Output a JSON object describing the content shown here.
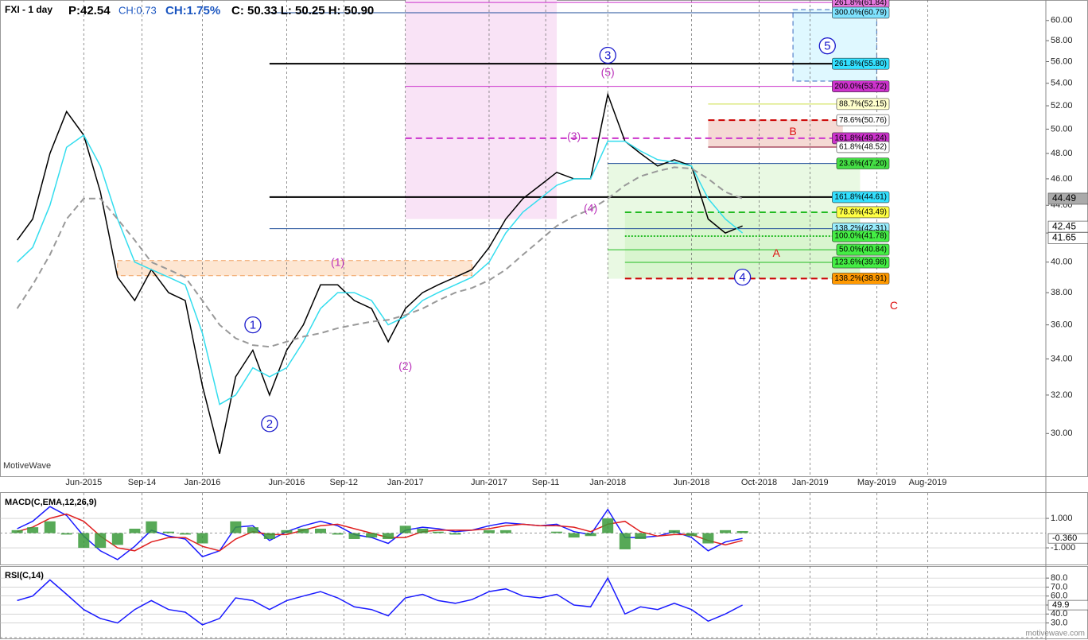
{
  "header": {
    "symbol": "FXI - 1 day",
    "price": "P:42.54",
    "change": "CH:0.73",
    "change_pct": "CH:1.75%",
    "ohlc": "C: 50.33 L: 50.25 H: 50.90"
  },
  "watermark": "MotiveWave",
  "footer": "motivewave.com",
  "chart_data": [
    {
      "type": "line",
      "log": true,
      "x": [
        "2015-02",
        "2015-03",
        "2015-04",
        "2015-05",
        "2015-06",
        "2015-07",
        "2015-08",
        "2015-09",
        "2015-10",
        "2015-11",
        "2015-12",
        "2016-01",
        "2016-02",
        "2016-03",
        "2016-04",
        "2016-05",
        "2016-06",
        "2016-07",
        "2016-08",
        "2016-09",
        "2016-10",
        "2016-11",
        "2016-12",
        "2017-01",
        "2017-02",
        "2017-03",
        "2017-04",
        "2017-05",
        "2017-06",
        "2017-07",
        "2017-08",
        "2017-09",
        "2017-10",
        "2017-11",
        "2017-12",
        "2018-01",
        "2018-02",
        "2018-03",
        "2018-04",
        "2018-05",
        "2018-06",
        "2018-07",
        "2018-08",
        "2018-09"
      ],
      "series": [
        {
          "color": "#000000",
          "values": [
            41.5,
            43,
            48,
            51.5,
            49.5,
            45,
            39,
            37.5,
            39.5,
            38,
            37.5,
            32.5,
            29,
            33,
            34.5,
            32,
            34.5,
            36,
            38.5,
            38.5,
            37.5,
            37,
            35,
            37,
            38,
            38.5,
            39,
            39.5,
            41,
            43,
            44.5,
            45.5,
            46.5,
            46,
            46,
            53,
            49,
            48,
            47,
            47.5,
            47,
            43,
            42,
            42.5
          ]
        },
        {
          "color": "#33ddee",
          "values": [
            40,
            41,
            44,
            48.5,
            49.5,
            47,
            43,
            40,
            39.5,
            39,
            38.5,
            35.5,
            31.5,
            32,
            33.5,
            33,
            33.5,
            35,
            37,
            38,
            38,
            37.5,
            36,
            36.5,
            37.5,
            38,
            38.5,
            39,
            40,
            42,
            43.5,
            44.5,
            45.5,
            46,
            46,
            49,
            49,
            48.2,
            47.5,
            47.3,
            47,
            44.5,
            43,
            42
          ]
        },
        {
          "color": "#999999",
          "dash": "dashed",
          "values": [
            37,
            38.5,
            40.5,
            43,
            44.5,
            44.5,
            43,
            41.5,
            40,
            39.5,
            39,
            37.5,
            36,
            35.2,
            34.8,
            34.7,
            35,
            35.3,
            35.5,
            35.8,
            36,
            36.2,
            36.3,
            36.6,
            37,
            37.5,
            38,
            38.3,
            38.8,
            39.5,
            40.5,
            41.5,
            42.5,
            43.2,
            43.7,
            44.5,
            45.5,
            46.2,
            46.6,
            46.9,
            46.8,
            46,
            45,
            44.5
          ]
        }
      ],
      "xlim": [
        "2015-01",
        "2020-03"
      ],
      "ylim": [
        28,
        62.1
      ],
      "xticks": [
        {
          "value": "2015-06",
          "label": "Jun-2015"
        },
        {
          "value": "2015-09-14",
          "label": "Sep-14"
        },
        {
          "value": "2016-01",
          "label": "Jan-2016"
        },
        {
          "value": "2016-06",
          "label": "Jun-2016"
        },
        {
          "value": "2016-09-12",
          "label": "Sep-12"
        },
        {
          "value": "2017-01",
          "label": "Jan-2017"
        },
        {
          "value": "2017-06",
          "label": "Jun-2017"
        },
        {
          "value": "2017-09-11",
          "label": "Sep-11"
        },
        {
          "value": "2018-01",
          "label": "Jan-2018"
        },
        {
          "value": "2018-06",
          "label": "Jun-2018"
        },
        {
          "value": "2018-10",
          "label": "Oct-2018"
        },
        {
          "value": "2019-01",
          "label": "Jan-2019"
        },
        {
          "value": "2019-05",
          "label": "May-2019"
        },
        {
          "value": "2019-08",
          "label": "Aug-2019"
        }
      ],
      "yticks": [
        {
          "value": 30,
          "label": "30.00"
        },
        {
          "value": 32,
          "label": "32.00"
        },
        {
          "value": 34,
          "label": "34.00"
        },
        {
          "value": 36,
          "label": "36.00"
        },
        {
          "value": 38,
          "label": "38.00"
        },
        {
          "value": 40,
          "label": "40.00"
        },
        {
          "value": 42,
          "label": "42.00"
        },
        {
          "value": 44,
          "label": "44.00"
        },
        {
          "value": 46,
          "label": "46.00"
        },
        {
          "value": 48,
          "label": "48.00"
        },
        {
          "value": 50,
          "label": "50.00"
        },
        {
          "value": 52,
          "label": "52.00"
        },
        {
          "value": 54,
          "label": "54.00"
        },
        {
          "value": 56,
          "label": "56.00"
        },
        {
          "value": 58,
          "label": "58.00"
        },
        {
          "value": 60,
          "label": "60.00"
        }
      ],
      "grid": true,
      "zones": [
        {
          "x": [
            "2017-01",
            "2017-10"
          ],
          "y": [
            43,
            62.1
          ],
          "color": "#f9e3f6"
        },
        {
          "x": [
            "2015-08",
            "2017-05"
          ],
          "y": [
            39.1,
            40.1
          ],
          "color": "#fde6d2",
          "border": "#f0a060"
        },
        {
          "x": [
            "2018-01",
            "2019-04"
          ],
          "y": [
            38.9,
            47.2
          ],
          "color": "#e9f9e3"
        },
        {
          "x": [
            "2018-02",
            "2019-04"
          ],
          "y": [
            38.9,
            43.5
          ],
          "color": "#d9f5cf"
        },
        {
          "x": [
            "2018-07",
            "2019-03"
          ],
          "y": [
            48.5,
            50.8
          ],
          "color": "#f5d9d4"
        },
        {
          "x": [
            "2018-12",
            "2019-05"
          ],
          "y": [
            54.2,
            61.1
          ],
          "color": "#dff8ff",
          "border": "#3a6ac0"
        }
      ],
      "levels": [
        {
          "label": "261.8%(61.84)",
          "value": 61.84,
          "from": "2017-01",
          "line": "#cc33cc",
          "box": "#e477dc"
        },
        {
          "label": "300.0%(60.79)",
          "value": 60.79,
          "from": "2016-05",
          "line": "#1f4e99",
          "box": "#7fe3ff"
        },
        {
          "label": "261.8%(55.80)",
          "value": 55.8,
          "from": "2016-05",
          "line": "#000000",
          "box": "#33e0ff"
        },
        {
          "label": "200.0%(53.72)",
          "value": 53.72,
          "from": "2017-01",
          "line": "#cc33cc",
          "box": "#cc33cc"
        },
        {
          "label": "88.7%(52.15)",
          "value": 52.15,
          "from": "2018-07",
          "line": "#ccdd44",
          "box": "#ffffcc"
        },
        {
          "label": "78.6%(50.76)",
          "value": 50.76,
          "from": "2018-07",
          "line": "#cc0000",
          "box": "#ffffff",
          "dash": "dashed"
        },
        {
          "label": "161.8%(49.24)",
          "value": 49.24,
          "from": "2017-01",
          "line": "#cc33cc",
          "box": "#cc33cc",
          "dash": "dashed"
        },
        {
          "label": "61.8%(48.52)",
          "value": 48.52,
          "from": "2018-07",
          "line": "#800020",
          "box": "#ffffff"
        },
        {
          "label": "23.6%(47.20)",
          "value": 47.2,
          "from": "2018-01",
          "line": "#1f4e99",
          "box": "#44dd44"
        },
        {
          "label": "161.8%(44.61)",
          "value": 44.61,
          "from": "2016-05",
          "line": "#000000",
          "box": "#33e0ff"
        },
        {
          "label": "78.6%(43.49)",
          "value": 43.49,
          "from": "2018-02",
          "line": "#22bb22",
          "box": "#ffff44",
          "dash": "dashed"
        },
        {
          "label": "138.2%(42.31)",
          "value": 42.31,
          "from": "2016-05",
          "line": "#1f4e99",
          "box": "#99eeff"
        },
        {
          "label": "100.0%(41.78)",
          "value": 41.78,
          "from": "2018-02",
          "line": "#22bb22",
          "box": "#44ee44",
          "dash": "dotted"
        },
        {
          "label": "50.0%(40.84)",
          "value": 40.84,
          "from": "2018-01",
          "line": "#22bb22",
          "box": "#44ee44"
        },
        {
          "label": "123.6%(39.98)",
          "value": 39.98,
          "from": "2018-02",
          "line": "#22bb22",
          "box": "#44ee44"
        },
        {
          "label": "138.2%(38.91)",
          "value": 38.91,
          "from": "2018-02",
          "line": "#cc0000",
          "box": "#ff9900",
          "dash": "dashed"
        }
      ],
      "wave_labels": [
        {
          "text": "1",
          "x": "2016-04",
          "y": 36,
          "color": "#1a1acc",
          "circle": true
        },
        {
          "text": "2",
          "x": "2016-05",
          "y": 30.5,
          "color": "#1a1acc",
          "circle": true
        },
        {
          "text": "(1)",
          "x": "2016-09",
          "y": 40,
          "color": "#bb33bb"
        },
        {
          "text": "(2)",
          "x": "2017-01",
          "y": 33.6,
          "color": "#bb33bb"
        },
        {
          "text": "(3)",
          "x": "2017-11",
          "y": 49.4,
          "color": "#bb33bb"
        },
        {
          "text": "(4)",
          "x": "2017-12",
          "y": 43.8,
          "color": "#bb33bb"
        },
        {
          "text": "3",
          "x": "2018-01",
          "y": 56.6,
          "color": "#1a1acc",
          "circle": true
        },
        {
          "text": "(5)",
          "x": "2018-01",
          "y": 55,
          "color": "#bb33bb"
        },
        {
          "text": "4",
          "x": "2018-09",
          "y": 39,
          "color": "#1a1acc",
          "circle": true
        },
        {
          "text": "A",
          "x": "2018-11",
          "y": 40.6,
          "color": "#dd1111"
        },
        {
          "text": "B",
          "x": "2018-12",
          "y": 49.8,
          "color": "#dd1111"
        },
        {
          "text": "5",
          "x": "2019-02",
          "y": 57.5,
          "color": "#1a1acc",
          "circle": true
        },
        {
          "text": "C",
          "x": "2019-06",
          "y": 37.2,
          "color": "#dd1111"
        }
      ],
      "price_tags": [
        {
          "value": 44.49,
          "color": "#aaaaaa"
        },
        {
          "value": 42.45,
          "color": "#ffffff"
        },
        {
          "value": 41.65,
          "color": "#ffffff"
        }
      ]
    },
    {
      "type": "line",
      "title": "MACD(C,EMA,12,26,9)",
      "series": [
        {
          "color": "#1a1aff",
          "values": [
            0.3,
            0.8,
            1.8,
            1.2,
            -0.2,
            -1.2,
            -1.8,
            -0.9,
            0.2,
            -0.2,
            -0.4,
            -1.6,
            -1.2,
            0.4,
            0.5,
            -0.5,
            0.1,
            0.5,
            0.8,
            0.5,
            -0.1,
            -0.3,
            -0.7,
            0.2,
            0.4,
            0.3,
            0.1,
            0.2,
            0.5,
            0.7,
            0.6,
            0.5,
            0.6,
            0.1,
            -0.1,
            1.6,
            -0.3,
            -0.3,
            -0.2,
            0.1,
            -0.3,
            -1.2,
            -0.6,
            -0.36
          ]
        },
        {
          "color": "#e02020",
          "values": [
            0.1,
            0.4,
            1.0,
            1.3,
            0.8,
            -0.2,
            -1.0,
            -1.2,
            -0.6,
            -0.3,
            -0.3,
            -0.9,
            -1.2,
            -0.4,
            0.1,
            -0.1,
            -0.1,
            0.2,
            0.5,
            0.6,
            0.3,
            0.0,
            -0.3,
            -0.3,
            0.1,
            0.2,
            0.2,
            0.2,
            0.3,
            0.5,
            0.6,
            0.5,
            0.5,
            0.4,
            0.1,
            0.6,
            0.8,
            0.1,
            -0.2,
            -0.1,
            -0.1,
            -0.5,
            -0.8,
            -0.5
          ]
        },
        {
          "type": "bar",
          "color": "#3a9a3a",
          "values": [
            0.2,
            0.4,
            0.8,
            -0.1,
            -1.0,
            -1.0,
            -0.8,
            0.3,
            0.8,
            0.1,
            -0.1,
            -0.7,
            0,
            0.8,
            0.4,
            -0.4,
            0.2,
            0.3,
            0.3,
            -0.1,
            -0.4,
            -0.3,
            -0.4,
            0.5,
            0.3,
            0.1,
            -0.1,
            0,
            0.2,
            0.2,
            0,
            0,
            0.1,
            -0.3,
            -0.2,
            1.0,
            -1.1,
            -0.4,
            0,
            0.2,
            -0.2,
            -0.7,
            0.2,
            0.14
          ]
        }
      ],
      "ylim": [
        -2.13,
        2.73
      ],
      "yticks": [
        {
          "value": 1,
          "label": "1.000"
        },
        {
          "value": -1,
          "label": "-1.000"
        }
      ],
      "value_tag": {
        "value": -0.36,
        "label": "-0.360"
      }
    },
    {
      "type": "line",
      "title": "RSI(C,14)",
      "series": [
        {
          "color": "#1a1aff",
          "values": [
            55,
            60,
            78,
            62,
            45,
            35,
            30,
            45,
            55,
            45,
            42,
            28,
            35,
            58,
            55,
            45,
            55,
            60,
            65,
            58,
            48,
            45,
            38,
            58,
            62,
            55,
            52,
            56,
            65,
            68,
            60,
            58,
            62,
            50,
            48,
            80,
            40,
            48,
            45,
            52,
            45,
            32,
            40,
            50
          ]
        }
      ],
      "ylim": [
        13.7,
        93.4
      ],
      "yticks": [
        {
          "value": 80,
          "label": "80.0"
        },
        {
          "value": 70,
          "label": "70.0"
        },
        {
          "value": 60,
          "label": "60.0"
        },
        {
          "value": 50,
          "label": "50.0"
        },
        {
          "value": 40,
          "label": "40.0"
        },
        {
          "value": 30,
          "label": "30.0"
        }
      ],
      "value_tag": 49.9
    }
  ]
}
